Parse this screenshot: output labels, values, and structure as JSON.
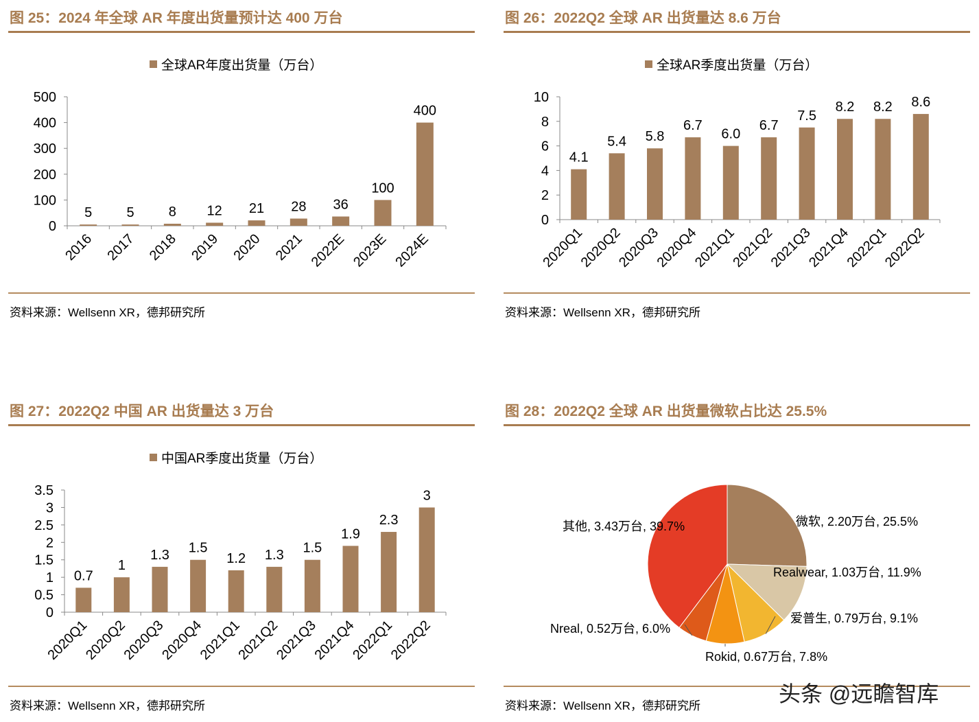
{
  "figures": [
    {
      "title": "图 25：2024 年全球 AR 年度出货量预计达 400 万台",
      "legend": "全球AR年度出货量（万台）",
      "source": "资料来源：Wellsenn XR，德邦研究所"
    },
    {
      "title": "图 26：2022Q2 全球 AR 出货量达 8.6 万台",
      "legend": "全球AR季度出货量（万台）",
      "source": "资料来源：Wellsenn XR，德邦研究所"
    },
    {
      "title": "图 27：2022Q2 中国 AR 出货量达 3 万台",
      "legend": "中国AR季度出货量（万台）",
      "source": "资料来源：Wellsenn XR，德邦研究所"
    },
    {
      "title": "图 28：2022Q2 全球 AR 出货量微软占比达 25.5%",
      "source": "资料来源：Wellsenn XR，德邦研究所"
    }
  ],
  "watermark": "头条 @远瞻智库",
  "colors": {
    "accent": "#a87c50",
    "bar": "#a57f5c"
  },
  "chart_data": [
    {
      "type": "bar",
      "categories": [
        "2016",
        "2017",
        "2018",
        "2019",
        "2020",
        "2021",
        "2022E",
        "2023E",
        "2024E"
      ],
      "series": [
        {
          "name": "全球AR年度出货量（万台）",
          "values": [
            5,
            5,
            8,
            12,
            21,
            28,
            36,
            100,
            400
          ]
        }
      ],
      "data_labels": [
        "5",
        "5",
        "8",
        "12",
        "21",
        "28",
        "36",
        "100",
        "400"
      ],
      "ylim": [
        0,
        500
      ],
      "yticks": [
        "0",
        "100",
        "200",
        "300",
        "400",
        "500"
      ],
      "ytick_values": [
        0,
        100,
        200,
        300,
        400,
        500
      ]
    },
    {
      "type": "bar",
      "categories": [
        "2020Q1",
        "2020Q2",
        "2020Q3",
        "2020Q4",
        "2021Q1",
        "2021Q2",
        "2021Q3",
        "2021Q4",
        "2022Q1",
        "2022Q2"
      ],
      "series": [
        {
          "name": "全球AR季度出货量（万台）",
          "values": [
            4.1,
            5.4,
            5.8,
            6.7,
            6.0,
            6.7,
            7.5,
            8.2,
            8.2,
            8.6
          ]
        }
      ],
      "data_labels": [
        "4.1",
        "5.4",
        "5.8",
        "6.7",
        "6.0",
        "6.7",
        "7.5",
        "8.2",
        "8.2",
        "8.6"
      ],
      "ylim": [
        0,
        10
      ],
      "yticks": [
        "0",
        "2",
        "4",
        "6",
        "8",
        "10"
      ],
      "ytick_values": [
        0,
        2,
        4,
        6,
        8,
        10
      ]
    },
    {
      "type": "bar",
      "categories": [
        "2020Q1",
        "2020Q2",
        "2020Q3",
        "2020Q4",
        "2021Q1",
        "2021Q2",
        "2021Q3",
        "2021Q4",
        "2022Q1",
        "2022Q2"
      ],
      "series": [
        {
          "name": "中国AR季度出货量（万台）",
          "values": [
            0.7,
            1,
            1.3,
            1.5,
            1.2,
            1.3,
            1.5,
            1.9,
            2.3,
            3
          ]
        }
      ],
      "data_labels": [
        "0.7",
        "1",
        "1.3",
        "1.5",
        "1.2",
        "1.3",
        "1.5",
        "1.9",
        "2.3",
        "3"
      ],
      "ylim": [
        0,
        3.5
      ],
      "yticks": [
        "0",
        "0.5",
        "1",
        "1.5",
        "2",
        "2.5",
        "3",
        "3.5"
      ],
      "ytick_values": [
        0,
        0.5,
        1,
        1.5,
        2,
        2.5,
        3,
        3.5
      ]
    },
    {
      "type": "pie",
      "slices": [
        {
          "name": "微软",
          "value": 2.2,
          "percent": 25.5,
          "label": "微软, 2.20万台, 25.5%",
          "color": "#a57f5c"
        },
        {
          "name": "Realwear",
          "value": 1.03,
          "percent": 11.9,
          "label": "Realwear, 1.03万台, 11.9%",
          "color": "#d9c7a6"
        },
        {
          "name": "爱普生",
          "value": 0.79,
          "percent": 9.1,
          "label": "爱普生, 0.79万台, 9.1%",
          "color": "#f2b630"
        },
        {
          "name": "Rokid",
          "value": 0.67,
          "percent": 7.8,
          "label": "Rokid, 0.67万台, 7.8%",
          "color": "#f39312"
        },
        {
          "name": "Nreal",
          "value": 0.52,
          "percent": 6.0,
          "label": "Nreal, 0.52万台, 6.0%",
          "color": "#de5a1a"
        },
        {
          "name": "其他",
          "value": 3.43,
          "percent": 39.7,
          "label": "其他, 3.43万台, 39.7%",
          "color": "#e43c26"
        }
      ]
    }
  ]
}
